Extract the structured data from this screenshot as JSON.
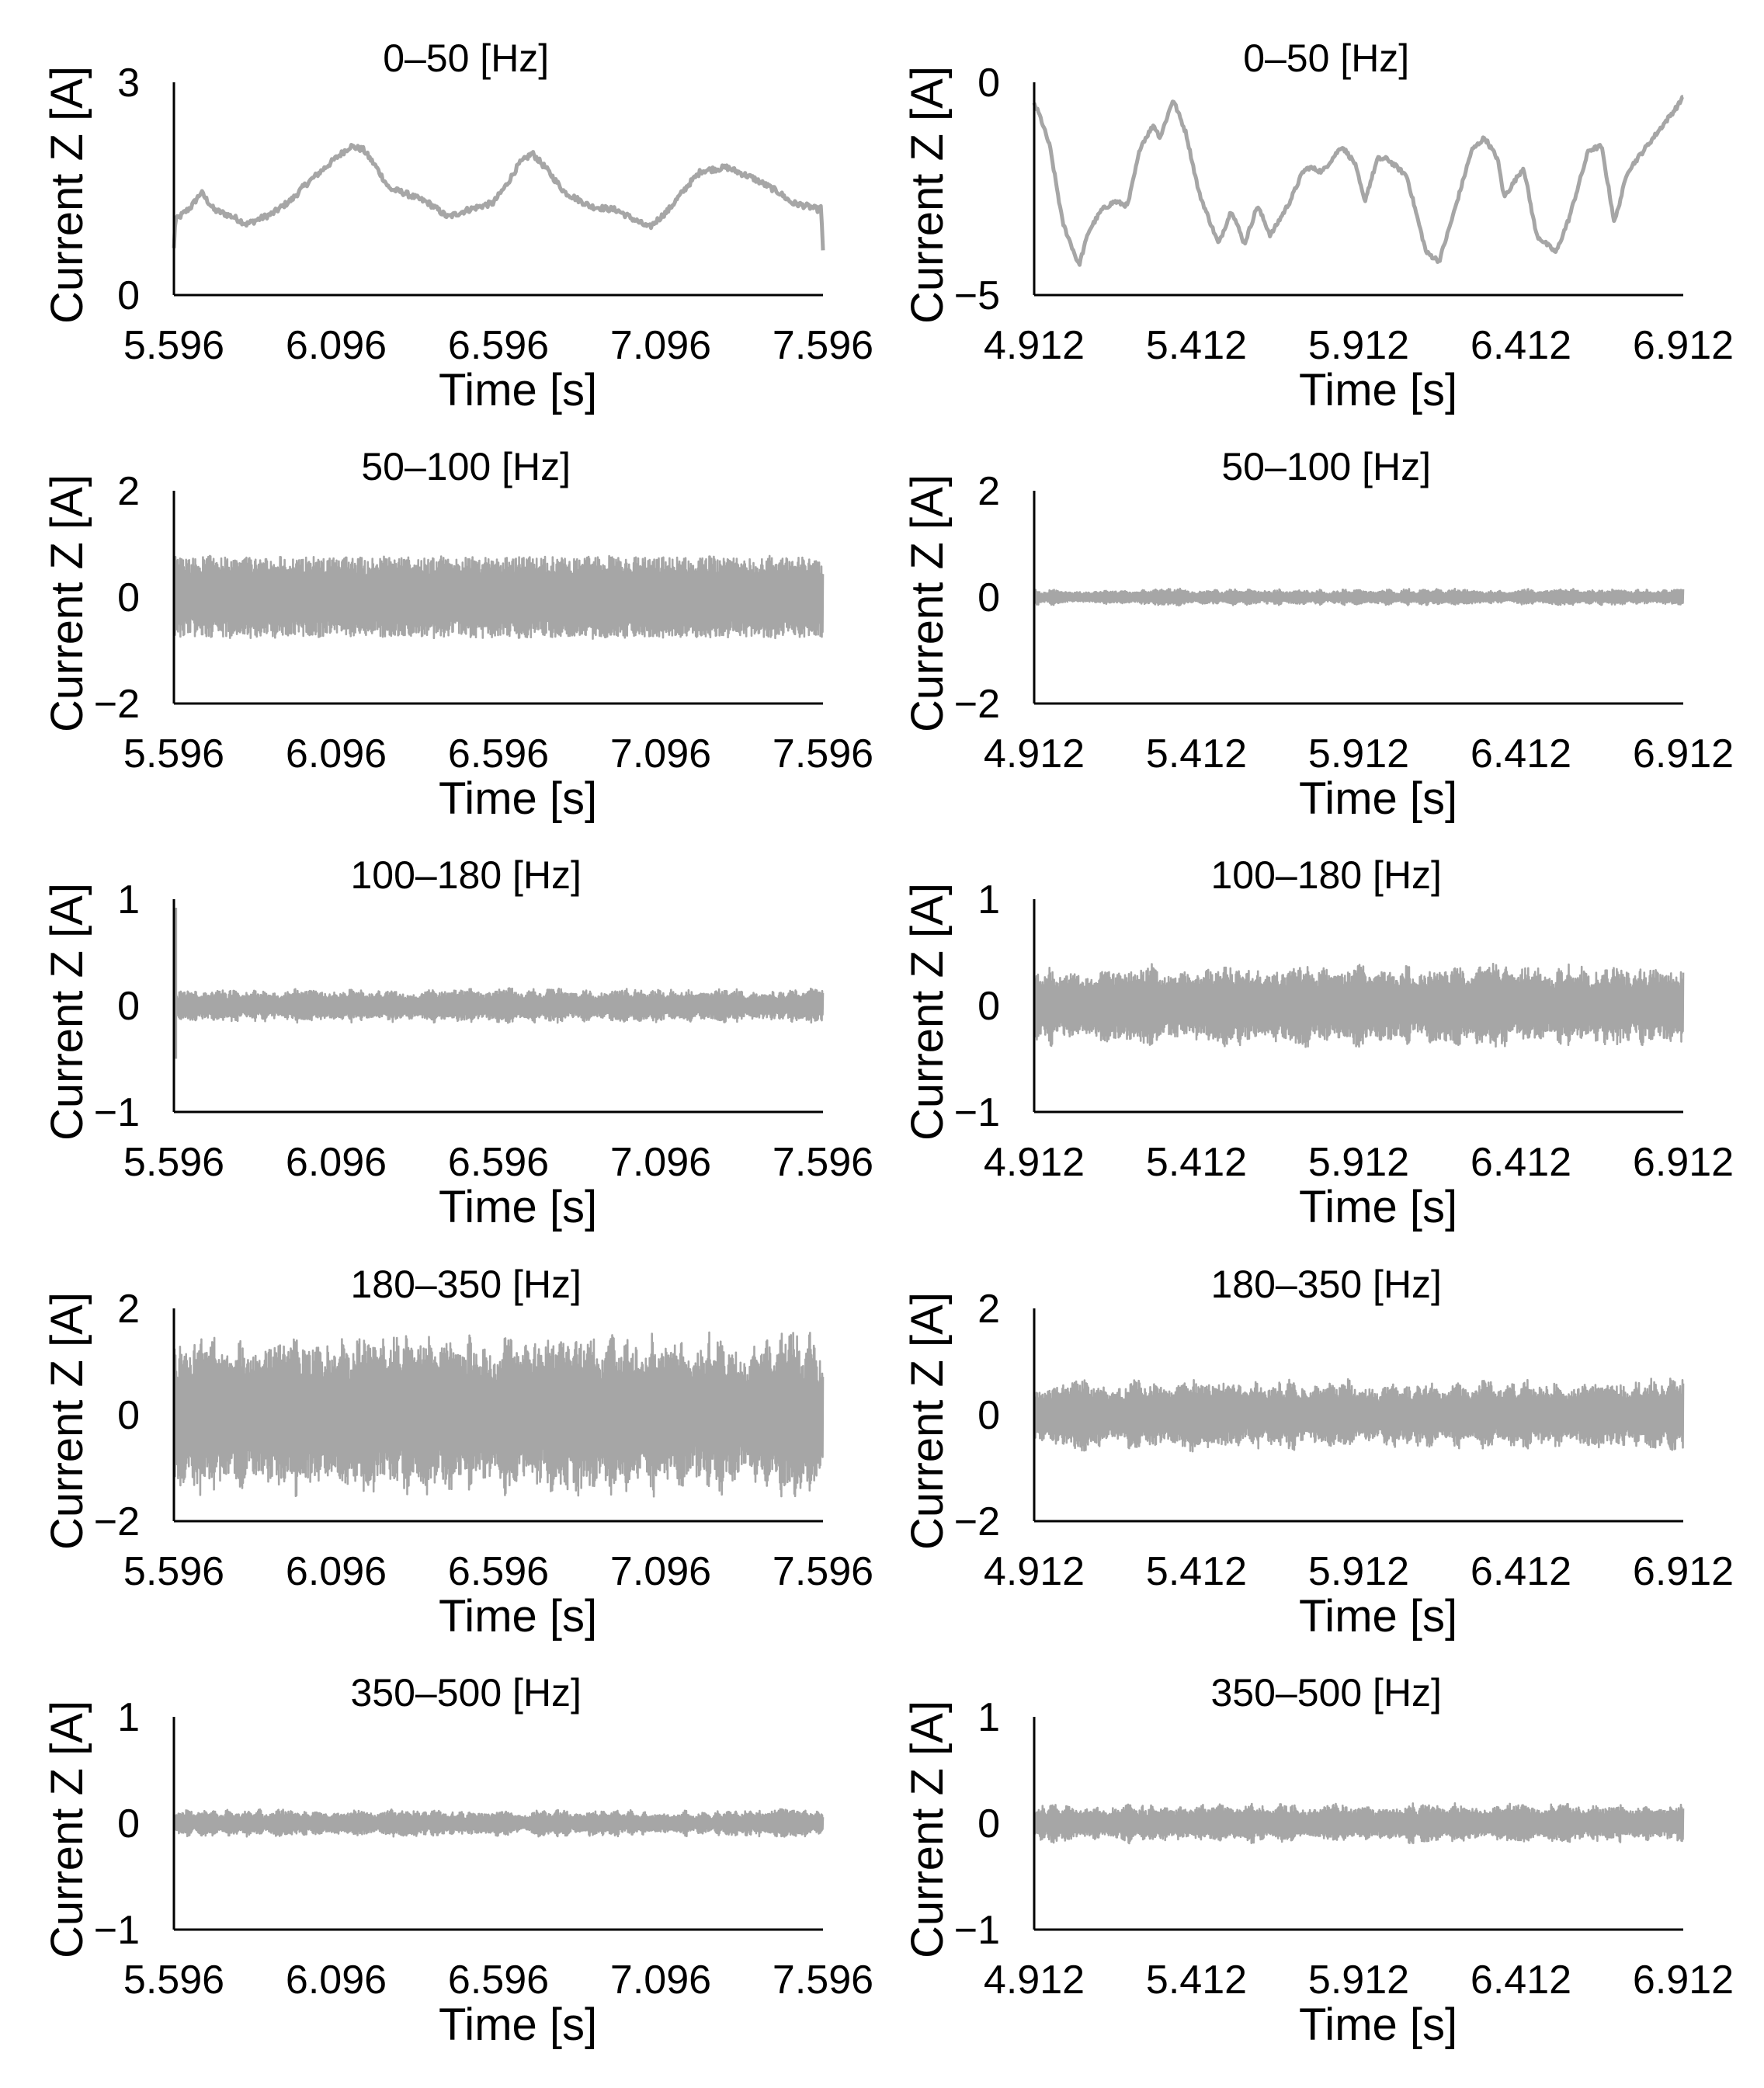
{
  "figure": {
    "description_free": true,
    "line_color": "#a6a6a6",
    "axis_color": "#000000"
  },
  "chart_data": [
    {
      "id": "left-0-50",
      "type": "line",
      "title": "0–50 [Hz]",
      "xlabel": "Time [s]",
      "ylabel": "Current Z [A]",
      "xlim": [
        5.596,
        7.596
      ],
      "ylim": [
        0,
        3
      ],
      "xticks": [
        "5.596",
        "6.096",
        "6.596",
        "7.096",
        "7.596"
      ],
      "yticks": [
        {
          "value": 3,
          "label": "3"
        },
        {
          "value": 0,
          "label": "0"
        }
      ],
      "signal": "trend",
      "x": [
        5.596,
        5.6,
        5.65,
        5.68,
        5.72,
        5.78,
        5.82,
        5.9,
        5.96,
        6.0,
        6.05,
        6.1,
        6.14,
        6.18,
        6.22,
        6.26,
        6.3,
        6.38,
        6.44,
        6.5,
        6.58,
        6.62,
        6.66,
        6.7,
        6.74,
        6.8,
        6.88,
        6.96,
        7.0,
        7.06,
        7.12,
        7.18,
        7.22,
        7.3,
        7.38,
        7.46,
        7.5,
        7.55,
        7.585,
        7.59,
        7.596
      ],
      "values": [
        0.65,
        1.05,
        1.25,
        1.45,
        1.2,
        1.1,
        1.0,
        1.15,
        1.35,
        1.55,
        1.75,
        1.95,
        2.1,
        2.05,
        1.8,
        1.5,
        1.45,
        1.3,
        1.1,
        1.2,
        1.3,
        1.55,
        1.85,
        2.0,
        1.8,
        1.45,
        1.25,
        1.2,
        1.1,
        0.95,
        1.2,
        1.55,
        1.75,
        1.8,
        1.65,
        1.45,
        1.3,
        1.25,
        1.2,
        1.25,
        0.6
      ],
      "noise": 0.04
    },
    {
      "id": "right-0-50",
      "type": "line",
      "title": "0–50 [Hz]",
      "xlabel": "Time [s]",
      "ylabel": "Current Z [A]",
      "xlim": [
        4.912,
        6.912
      ],
      "ylim": [
        -5,
        0
      ],
      "xticks": [
        "4.912",
        "5.412",
        "5.912",
        "6.412",
        "6.912"
      ],
      "yticks": [
        {
          "value": 0,
          "label": "0"
        },
        {
          "value": -5,
          "label": "−5"
        }
      ],
      "signal": "trend",
      "x": [
        4.912,
        4.93,
        4.96,
        5.0,
        5.05,
        5.08,
        5.12,
        5.16,
        5.2,
        5.24,
        5.28,
        5.3,
        5.34,
        5.38,
        5.42,
        5.48,
        5.52,
        5.56,
        5.6,
        5.64,
        5.7,
        5.74,
        5.76,
        5.8,
        5.86,
        5.9,
        5.93,
        5.97,
        6.0,
        6.06,
        6.12,
        6.16,
        6.2,
        6.26,
        6.3,
        6.34,
        6.36,
        6.42,
        6.46,
        6.52,
        6.56,
        6.62,
        6.66,
        6.7,
        6.74,
        6.8,
        6.86,
        6.9,
        6.912
      ],
      "values": [
        -0.5,
        -0.8,
        -1.5,
        -3.3,
        -4.3,
        -3.5,
        -3.0,
        -2.8,
        -2.9,
        -1.5,
        -1.0,
        -1.3,
        -0.4,
        -1.2,
        -2.6,
        -3.8,
        -3.0,
        -3.8,
        -2.9,
        -3.6,
        -2.8,
        -2.1,
        -2.0,
        -2.1,
        -1.5,
        -1.9,
        -2.8,
        -1.8,
        -1.8,
        -2.2,
        -4.0,
        -4.2,
        -3.2,
        -1.6,
        -1.3,
        -1.8,
        -2.7,
        -2.0,
        -3.6,
        -4.0,
        -3.2,
        -1.6,
        -1.5,
        -3.3,
        -2.1,
        -1.5,
        -0.9,
        -0.5,
        -0.3
      ],
      "noise": 0.05
    },
    {
      "id": "left-50-100",
      "type": "line",
      "title": "50–100 [Hz]",
      "xlabel": "Time [s]",
      "ylabel": "Current Z [A]",
      "xlim": [
        5.596,
        7.596
      ],
      "ylim": [
        -2,
        2
      ],
      "xticks": [
        "5.596",
        "6.096",
        "6.596",
        "7.096",
        "7.596"
      ],
      "yticks": [
        {
          "value": 2,
          "label": "2"
        },
        {
          "value": 0,
          "label": "0"
        },
        {
          "value": -2,
          "label": "−2"
        }
      ],
      "signal": "oscillation",
      "amplitude": 0.75,
      "amplitude_variation": 0.05
    },
    {
      "id": "right-50-100",
      "type": "line",
      "title": "50–100 [Hz]",
      "xlabel": "Time [s]",
      "ylabel": "Current Z [A]",
      "xlim": [
        4.912,
        6.912
      ],
      "ylim": [
        -2,
        2
      ],
      "xticks": [
        "4.912",
        "5.412",
        "5.912",
        "6.412",
        "6.912"
      ],
      "yticks": [
        {
          "value": 2,
          "label": "2"
        },
        {
          "value": 0,
          "label": "0"
        },
        {
          "value": -2,
          "label": "−2"
        }
      ],
      "signal": "oscillation",
      "amplitude": 0.12,
      "amplitude_variation": 0.35
    },
    {
      "id": "left-100-180",
      "type": "line",
      "title": "100–180 [Hz]",
      "xlabel": "Time [s]",
      "ylabel": "Current Z [A]",
      "xlim": [
        5.596,
        7.596
      ],
      "ylim": [
        -1,
        1
      ],
      "xticks": [
        "5.596",
        "6.096",
        "6.596",
        "7.096",
        "7.596"
      ],
      "yticks": [
        {
          "value": 1,
          "label": "1"
        },
        {
          "value": 0,
          "label": "0"
        },
        {
          "value": -1,
          "label": "−1"
        }
      ],
      "signal": "oscillation",
      "amplitude": 0.13,
      "amplitude_variation": 0.3,
      "spike": {
        "x": 5.6,
        "max": 0.92,
        "min": -0.5
      }
    },
    {
      "id": "right-100-180",
      "type": "line",
      "title": "100–180 [Hz]",
      "xlabel": "Time [s]",
      "ylabel": "Current Z [A]",
      "xlim": [
        4.912,
        6.912
      ],
      "ylim": [
        -1,
        1
      ],
      "xticks": [
        "4.912",
        "5.412",
        "5.912",
        "6.412",
        "6.912"
      ],
      "yticks": [
        {
          "value": 1,
          "label": "1"
        },
        {
          "value": 0,
          "label": "0"
        },
        {
          "value": -1,
          "label": "−1"
        }
      ],
      "signal": "oscillation",
      "amplitude": 0.32,
      "amplitude_variation": 0.25
    },
    {
      "id": "left-180-350",
      "type": "line",
      "title": "180–350 [Hz]",
      "xlabel": "Time [s]",
      "ylabel": "Current Z [A]",
      "xlim": [
        5.596,
        7.596
      ],
      "ylim": [
        -2,
        2
      ],
      "xticks": [
        "5.596",
        "6.096",
        "6.596",
        "7.096",
        "7.596"
      ],
      "yticks": [
        {
          "value": 2,
          "label": "2"
        },
        {
          "value": 0,
          "label": "0"
        },
        {
          "value": -2,
          "label": "−2"
        }
      ],
      "signal": "oscillation",
      "amplitude": 1.3,
      "amplitude_variation": 0.25
    },
    {
      "id": "right-180-350",
      "type": "line",
      "title": "180–350 [Hz]",
      "xlabel": "Time [s]",
      "ylabel": "Current Z [A]",
      "xlim": [
        4.912,
        6.912
      ],
      "ylim": [
        -2,
        2
      ],
      "xticks": [
        "4.912",
        "5.412",
        "5.912",
        "6.412",
        "6.912"
      ],
      "yticks": [
        {
          "value": 2,
          "label": "2"
        },
        {
          "value": 0,
          "label": "0"
        },
        {
          "value": -2,
          "label": "−2"
        }
      ],
      "signal": "oscillation",
      "amplitude": 0.55,
      "amplitude_variation": 0.3
    },
    {
      "id": "left-350-500",
      "type": "line",
      "title": "350–500 [Hz]",
      "xlabel": "Time [s]",
      "ylabel": "Current Z [A]",
      "xlim": [
        5.596,
        7.596
      ],
      "ylim": [
        -1,
        1
      ],
      "xticks": [
        "5.596",
        "6.096",
        "6.596",
        "7.096",
        "7.596"
      ],
      "yticks": [
        {
          "value": 1,
          "label": "1"
        },
        {
          "value": 0,
          "label": "0"
        },
        {
          "value": -1,
          "label": "−1"
        }
      ],
      "signal": "oscillation",
      "amplitude": 0.1,
      "amplitude_variation": 0.35
    },
    {
      "id": "right-350-500",
      "type": "line",
      "title": "350–500 [Hz]",
      "xlabel": "Time [s]",
      "ylabel": "Current Z [A]",
      "xlim": [
        4.912,
        6.912
      ],
      "ylim": [
        -1,
        1
      ],
      "xticks": [
        "4.912",
        "5.412",
        "5.912",
        "6.412",
        "6.912"
      ],
      "yticks": [
        {
          "value": 1,
          "label": "1"
        },
        {
          "value": 0,
          "label": "0"
        },
        {
          "value": -1,
          "label": "−1"
        }
      ],
      "signal": "oscillation",
      "amplitude": 0.15,
      "amplitude_variation": 0.3
    }
  ]
}
